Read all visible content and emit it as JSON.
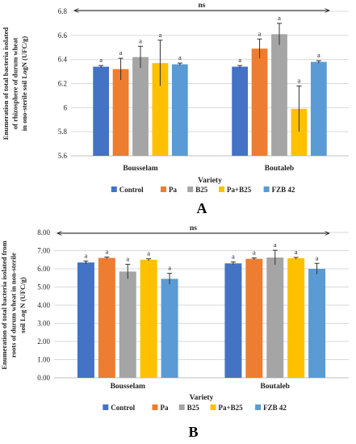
{
  "colors": {
    "Control": "#4472C4",
    "Pa": "#ED7D31",
    "B25": "#A5A5A5",
    "Pa+B25": "#FFC000",
    "FZB 42": "#5B9BD5"
  },
  "chart_data": [
    {
      "type": "bar",
      "panel_label": "A",
      "ylabel": "Enumeration of total bacteria isolated of rhizosphere of durum wheat in ono-sterile soil LogN (UFC/g)",
      "xlabel": "Variety",
      "ylim": [
        5.6,
        6.8
      ],
      "yticks": [
        "5.6",
        "5.8",
        "6",
        "6.2",
        "6.4",
        "6.6",
        "6.8"
      ],
      "categories": [
        "Bousselam",
        "Boutaleb"
      ],
      "significance": "ns",
      "grid": true,
      "legend_position": "bottom",
      "series": [
        {
          "name": "Control",
          "values": [
            6.34,
            6.34
          ],
          "errors": [
            0.01,
            0.01
          ],
          "labels": [
            "a",
            "a"
          ]
        },
        {
          "name": "Pa",
          "values": [
            6.32,
            6.49
          ],
          "errors": [
            0.09,
            0.08
          ],
          "labels": [
            "a",
            "a"
          ]
        },
        {
          "name": "B25",
          "values": [
            6.42,
            6.61
          ],
          "errors": [
            0.09,
            0.09
          ],
          "labels": [
            "a",
            "a"
          ]
        },
        {
          "name": "Pa+B25",
          "values": [
            6.37,
            5.99
          ],
          "errors": [
            0.19,
            0.19
          ],
          "labels": [
            "a",
            "a"
          ]
        },
        {
          "name": "FZB 42",
          "values": [
            6.36,
            6.38
          ],
          "errors": [
            0.01,
            0.01
          ],
          "labels": [
            "a",
            "a"
          ]
        }
      ]
    },
    {
      "type": "bar",
      "panel_label": "B",
      "ylabel": "Enumeration of total bacteria isolated from roots of durum wheat in non-sterile soil Log N (UFC/g)",
      "xlabel": "Variety",
      "ylim": [
        0,
        8
      ],
      "yticks": [
        "0.00",
        "1.00",
        "2.00",
        "3.00",
        "4.00",
        "5.00",
        "6.00",
        "7.00",
        "8.00"
      ],
      "categories": [
        "Bousselam",
        "Boutaleb"
      ],
      "significance": "ns",
      "grid": true,
      "legend_position": "bottom",
      "series": [
        {
          "name": "Control",
          "values": [
            6.35,
            6.3
          ],
          "errors": [
            0.08,
            0.08
          ],
          "labels": [
            "a",
            "a"
          ]
        },
        {
          "name": "Pa",
          "values": [
            6.6,
            6.55
          ],
          "errors": [
            0.05,
            0.05
          ],
          "labels": [
            "a",
            "a"
          ]
        },
        {
          "name": "B25",
          "values": [
            5.85,
            6.62
          ],
          "errors": [
            0.4,
            0.4
          ],
          "labels": [
            "a",
            "a"
          ]
        },
        {
          "name": "Pa+B25",
          "values": [
            6.5,
            6.58
          ],
          "errors": [
            0.05,
            0.05
          ],
          "labels": [
            "a",
            "a"
          ]
        },
        {
          "name": "FZB 42",
          "values": [
            5.45,
            6.0
          ],
          "errors": [
            0.3,
            0.3
          ],
          "labels": [
            "a",
            "a"
          ]
        }
      ]
    }
  ]
}
